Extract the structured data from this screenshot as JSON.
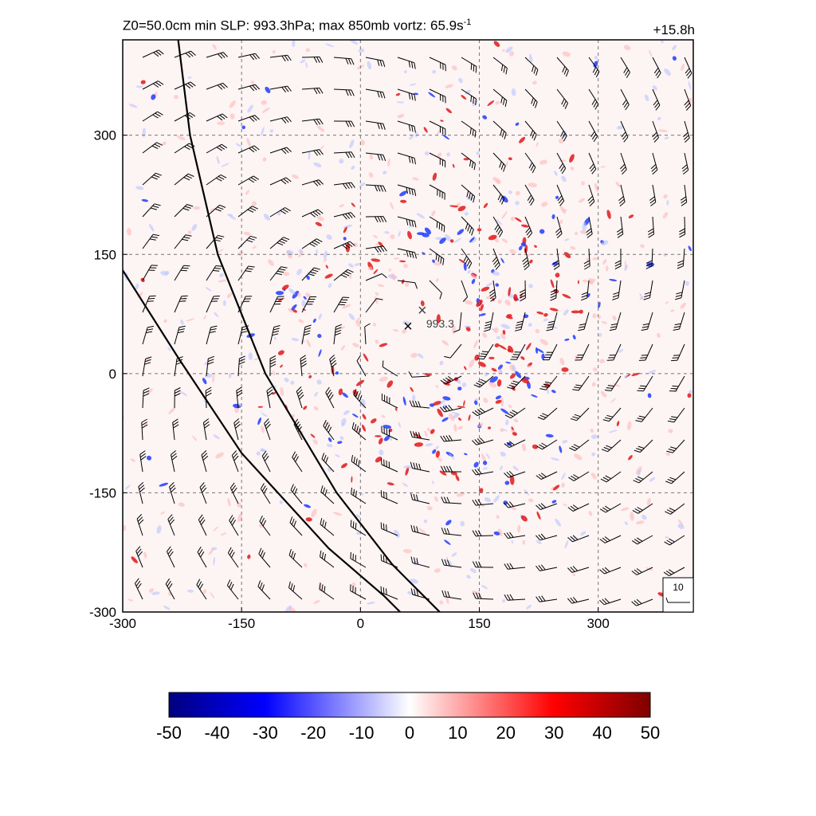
{
  "header": {
    "title_main": "Z0=50.0cm  min SLP: 993.3hPa; max 850mb vortz:  65.9s",
    "title_exp": "-1",
    "time_label": "+15.8h"
  },
  "chart_data": {
    "type": "heatmap",
    "description_fields": {
      "field": "850mb relative vorticity",
      "wind": "wind barbs"
    },
    "x_ticks": [
      -300,
      -150,
      0,
      150,
      300
    ],
    "y_ticks": [
      -300,
      -150,
      0,
      150,
      300
    ],
    "xlim": [
      -300,
      420
    ],
    "ylim": [
      -300,
      420
    ],
    "grid": "dashed",
    "colorbar": {
      "ticks": [
        -50,
        -40,
        -30,
        -20,
        -10,
        0,
        10,
        20,
        30,
        40,
        50
      ],
      "range": [
        -50,
        50
      ],
      "colors": [
        "#00007f",
        "#0000ff",
        "#ffffff",
        "#ff0000",
        "#7f0000"
      ]
    },
    "center_marker": {
      "x": 60,
      "y": 60,
      "symbol": "×"
    },
    "slp_marker": {
      "x": 78,
      "y": 80,
      "label": "993.3"
    },
    "reference_vector": {
      "label": "10"
    },
    "track_lines": [
      {
        "points": [
          [
            -230,
            420
          ],
          [
            -215,
            300
          ],
          [
            -180,
            150
          ],
          [
            -120,
            0
          ],
          [
            -30,
            -150
          ],
          [
            40,
            -240
          ],
          [
            100,
            -300
          ]
        ]
      },
      {
        "points": [
          [
            -300,
            130
          ],
          [
            -230,
            20
          ],
          [
            -150,
            -100
          ],
          [
            -40,
            -220
          ],
          [
            30,
            -280
          ],
          [
            50,
            -300
          ]
        ]
      }
    ]
  }
}
